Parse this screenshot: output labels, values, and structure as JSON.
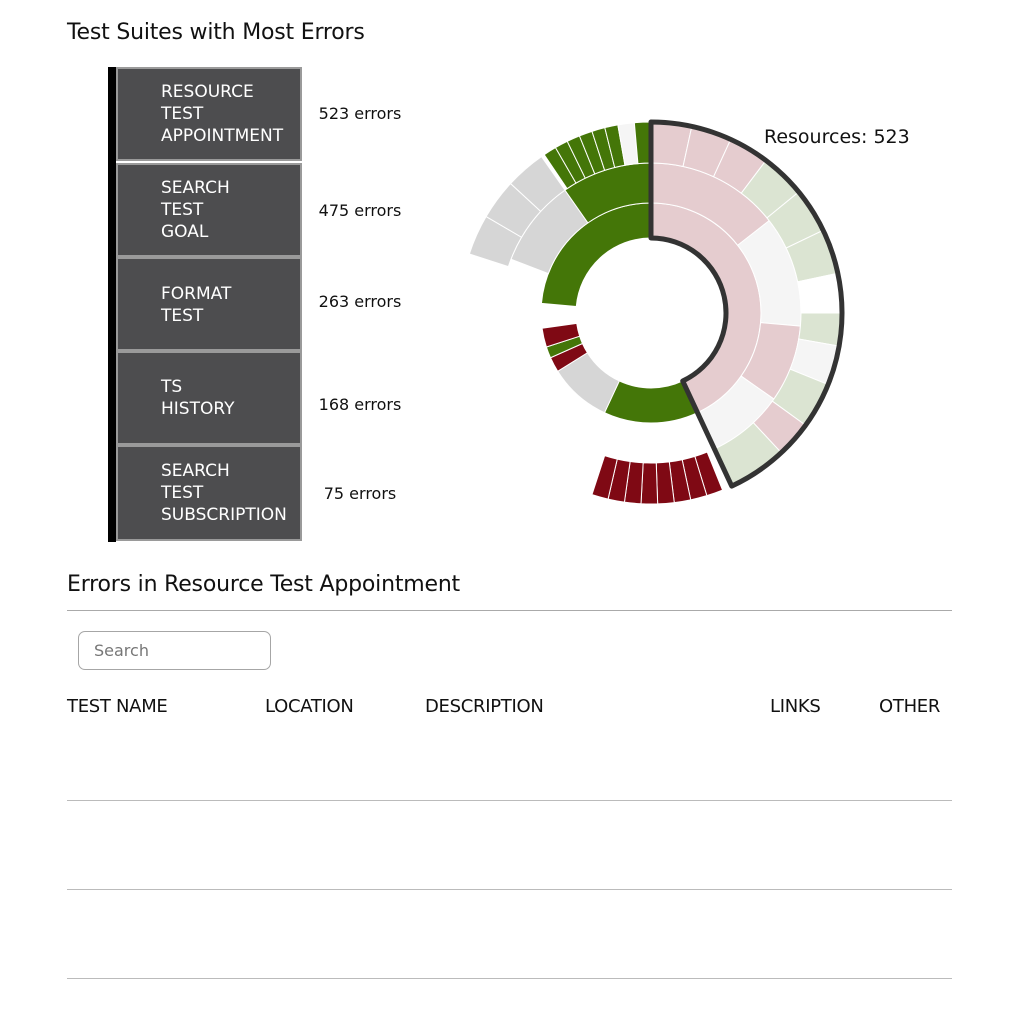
{
  "page": {
    "title": "Test Suites with Most Errors",
    "details_title": "Errors in Resource Test Appointment"
  },
  "suites": [
    {
      "lines": [
        "RESOURCE",
        "TEST",
        "APPOINTMENT"
      ],
      "count": "523 errors",
      "selected": true
    },
    {
      "lines": [
        "SEARCH",
        "TEST",
        "GOAL"
      ],
      "count": "475 errors",
      "selected": false
    },
    {
      "lines": [
        "FORMAT",
        "TEST"
      ],
      "count": "263 errors",
      "selected": false
    },
    {
      "lines": [
        "TS",
        "HISTORY"
      ],
      "count": "168 errors",
      "selected": false
    },
    {
      "lines": [
        "SEARCH",
        "TEST",
        "SUBSCRIPTION"
      ],
      "count": "75 errors",
      "selected": false
    }
  ],
  "sunburst": {
    "hover_label": "Resources: 523",
    "colors": {
      "green": "#447608",
      "grey": "#d6d6d6",
      "darkred": "#7f0914",
      "pink": "#e5cccf",
      "lightgrey": "#f5f5f5",
      "lightgreen": "#dbe4d2",
      "white": "#ffffff",
      "highlight": "#333333"
    }
  },
  "search": {
    "placeholder": "Search",
    "value": ""
  },
  "table": {
    "columns": [
      "TEST NAME",
      "LOCATION",
      "DESCRIPTION",
      "LINKS",
      "OTHER"
    ],
    "rows": [
      [],
      [],
      []
    ]
  }
}
